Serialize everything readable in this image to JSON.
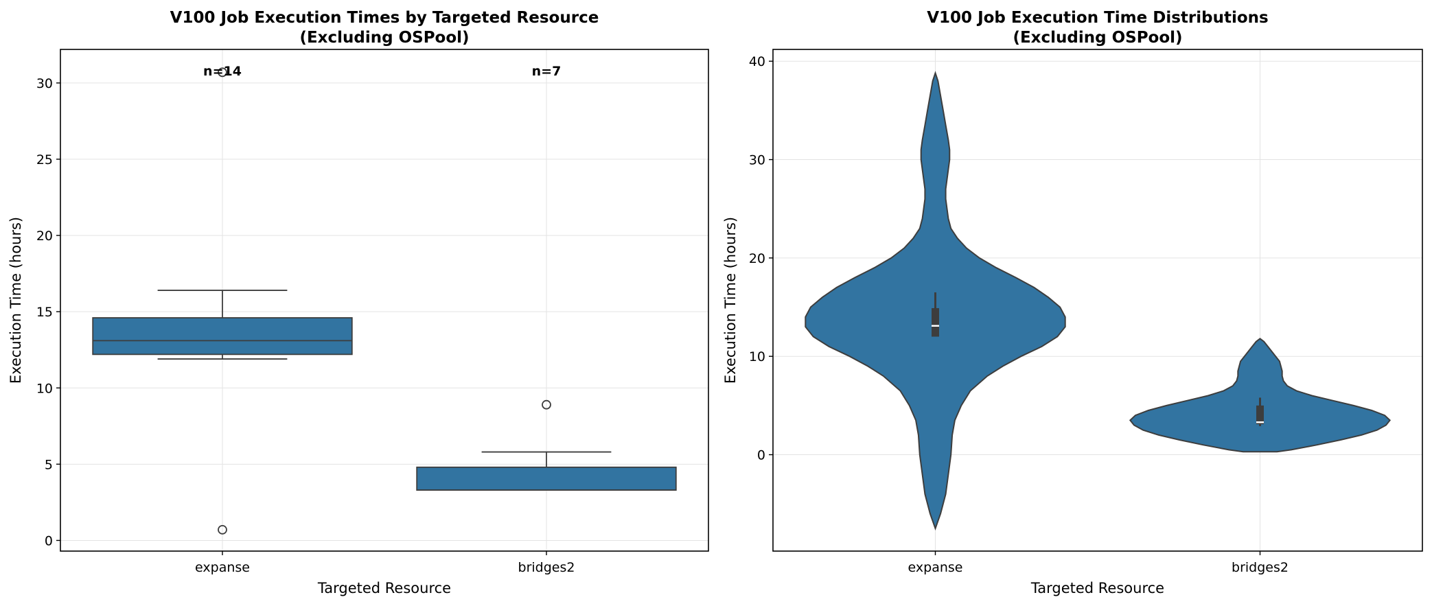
{
  "colors": {
    "box_fill": "#3274a1",
    "edge": "#3d3d3d",
    "grid": "#e3e3e3",
    "violin_inner": "#3d3d3d",
    "median_white": "#ffffff"
  },
  "chart_data": [
    {
      "type": "box",
      "title_line1": "V100 Job Execution Times by Targeted Resource",
      "title_line2": "(Excluding OSPool)",
      "xlabel": "Targeted Resource",
      "ylabel": "Execution Time (hours)",
      "ylim": [
        -0.7,
        32.2
      ],
      "yticks": [
        0,
        5,
        10,
        15,
        20,
        25,
        30
      ],
      "grid": true,
      "categories": [
        "expanse",
        "bridges2"
      ],
      "boxes": [
        {
          "category": "expanse",
          "n": 14,
          "n_label": "n=14",
          "whisker_low": 11.9,
          "q1": 12.2,
          "median": 13.1,
          "q3": 14.6,
          "whisker_high": 16.4,
          "outliers": [
            30.7,
            0.7
          ]
        },
        {
          "category": "bridges2",
          "n": 7,
          "n_label": "n=7",
          "whisker_low": 3.3,
          "q1": 3.3,
          "median": 3.3,
          "q3": 4.8,
          "whisker_high": 5.8,
          "outliers": [
            8.9
          ]
        }
      ]
    },
    {
      "type": "violin",
      "title_line1": "V100 Job Execution Time Distributions",
      "title_line2": "(Excluding OSPool)",
      "xlabel": "Targeted Resource",
      "ylabel": "Execution Time (hours)",
      "ylim": [
        -9.8,
        41.2
      ],
      "yticks": [
        0,
        10,
        20,
        30,
        40
      ],
      "grid": true,
      "categories": [
        "expanse",
        "bridges2"
      ],
      "violins": [
        {
          "category": "expanse",
          "inner": {
            "whisker_low": 12.0,
            "q1": 12.0,
            "median": 13.1,
            "q3": 14.9,
            "whisker_high": 16.5
          },
          "profile": [
            [
              -7.5,
              0.0
            ],
            [
              -6.0,
              0.04
            ],
            [
              -4.0,
              0.08
            ],
            [
              -2.0,
              0.1
            ],
            [
              0.0,
              0.12
            ],
            [
              2.0,
              0.13
            ],
            [
              3.5,
              0.15
            ],
            [
              5.0,
              0.2
            ],
            [
              6.5,
              0.27
            ],
            [
              8.0,
              0.4
            ],
            [
              9.0,
              0.52
            ],
            [
              10.0,
              0.66
            ],
            [
              11.0,
              0.82
            ],
            [
              12.0,
              0.94
            ],
            [
              13.0,
              1.0
            ],
            [
              14.0,
              1.0
            ],
            [
              15.0,
              0.96
            ],
            [
              16.0,
              0.87
            ],
            [
              17.0,
              0.76
            ],
            [
              18.0,
              0.62
            ],
            [
              19.0,
              0.47
            ],
            [
              20.0,
              0.34
            ],
            [
              21.0,
              0.24
            ],
            [
              22.0,
              0.17
            ],
            [
              23.0,
              0.12
            ],
            [
              24.0,
              0.1
            ],
            [
              25.0,
              0.09
            ],
            [
              26.0,
              0.08
            ],
            [
              27.0,
              0.08
            ],
            [
              28.0,
              0.09
            ],
            [
              29.0,
              0.1
            ],
            [
              30.0,
              0.11
            ],
            [
              31.0,
              0.11
            ],
            [
              32.0,
              0.1
            ],
            [
              33.5,
              0.08
            ],
            [
              35.0,
              0.06
            ],
            [
              36.5,
              0.04
            ],
            [
              38.0,
              0.02
            ],
            [
              38.8,
              0.0
            ]
          ]
        },
        {
          "category": "bridges2",
          "inner": {
            "whisker_low": 2.9,
            "q1": 3.1,
            "median": 3.3,
            "q3": 5.0,
            "whisker_high": 5.8
          },
          "profile": [
            [
              0.3,
              0.13
            ],
            [
              0.5,
              0.24
            ],
            [
              1.0,
              0.44
            ],
            [
              1.5,
              0.62
            ],
            [
              2.0,
              0.78
            ],
            [
              2.5,
              0.9
            ],
            [
              3.0,
              0.97
            ],
            [
              3.5,
              1.0
            ],
            [
              4.0,
              0.96
            ],
            [
              4.5,
              0.86
            ],
            [
              5.0,
              0.72
            ],
            [
              5.5,
              0.56
            ],
            [
              6.0,
              0.4
            ],
            [
              6.5,
              0.28
            ],
            [
              7.0,
              0.21
            ],
            [
              7.5,
              0.18
            ],
            [
              8.0,
              0.17
            ],
            [
              8.5,
              0.17
            ],
            [
              9.0,
              0.16
            ],
            [
              9.5,
              0.15
            ],
            [
              10.0,
              0.12
            ],
            [
              10.5,
              0.09
            ],
            [
              11.0,
              0.06
            ],
            [
              11.5,
              0.03
            ],
            [
              11.8,
              0.0
            ]
          ]
        }
      ]
    }
  ]
}
